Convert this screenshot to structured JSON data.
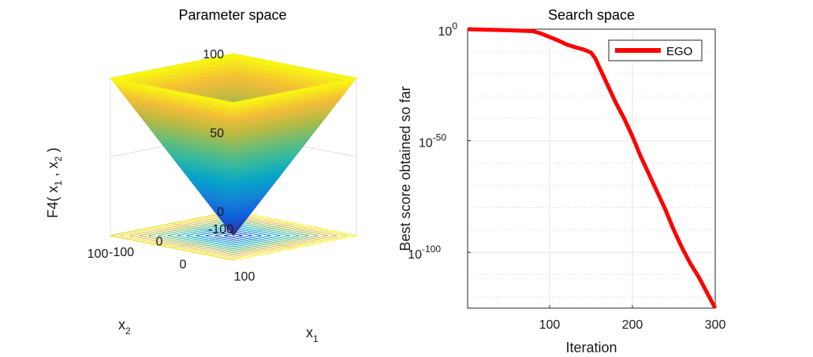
{
  "chart_data": [
    {
      "type": "surface",
      "title": "Parameter space",
      "zlabel": "F4( x1 , x2 )",
      "xlabel": "x1",
      "ylabel": "x2",
      "x_ticks": [
        "-100",
        "0",
        "100"
      ],
      "y_ticks": [
        "-100",
        "0",
        "100"
      ],
      "z_ticks": [
        "0",
        "50",
        "100"
      ],
      "xlim": [
        -100,
        100
      ],
      "ylim": [
        -100,
        100
      ],
      "zlim": [
        0,
        100
      ],
      "function": "max(|x1|, |x2|)",
      "colormap": "parula",
      "contours": true
    },
    {
      "type": "line",
      "title": "Search space",
      "xlabel": "Iteration",
      "ylabel": "Best score obtained so far",
      "x_ticks": [
        "100",
        "200",
        "300"
      ],
      "y_ticks": [
        {
          "base": "10",
          "exp": "0",
          "value": 0
        },
        {
          "base": "10",
          "exp": "-50",
          "value": -50
        },
        {
          "base": "10",
          "exp": "-100",
          "value": -100
        }
      ],
      "xlim": [
        1,
        300
      ],
      "ylog_exponent_range": [
        -125,
        0
      ],
      "yscale": "log",
      "grid": true,
      "legend_position": "top-right",
      "series": [
        {
          "name": "EGO",
          "color": "#ff0000",
          "x": [
            1,
            20,
            40,
            60,
            80,
            90,
            100,
            110,
            120,
            130,
            140,
            150,
            155,
            160,
            170,
            180,
            190,
            200,
            210,
            220,
            230,
            240,
            250,
            260,
            270,
            280,
            290,
            300
          ],
          "log10_y": [
            0,
            -0.2,
            -0.4,
            -0.6,
            -0.9,
            -2,
            -3.5,
            -5,
            -6.8,
            -8,
            -9,
            -10.5,
            -13,
            -17,
            -25,
            -33,
            -40,
            -48,
            -57,
            -65,
            -73,
            -81,
            -90,
            -98,
            -105,
            -111,
            -118,
            -125
          ]
        }
      ]
    }
  ]
}
